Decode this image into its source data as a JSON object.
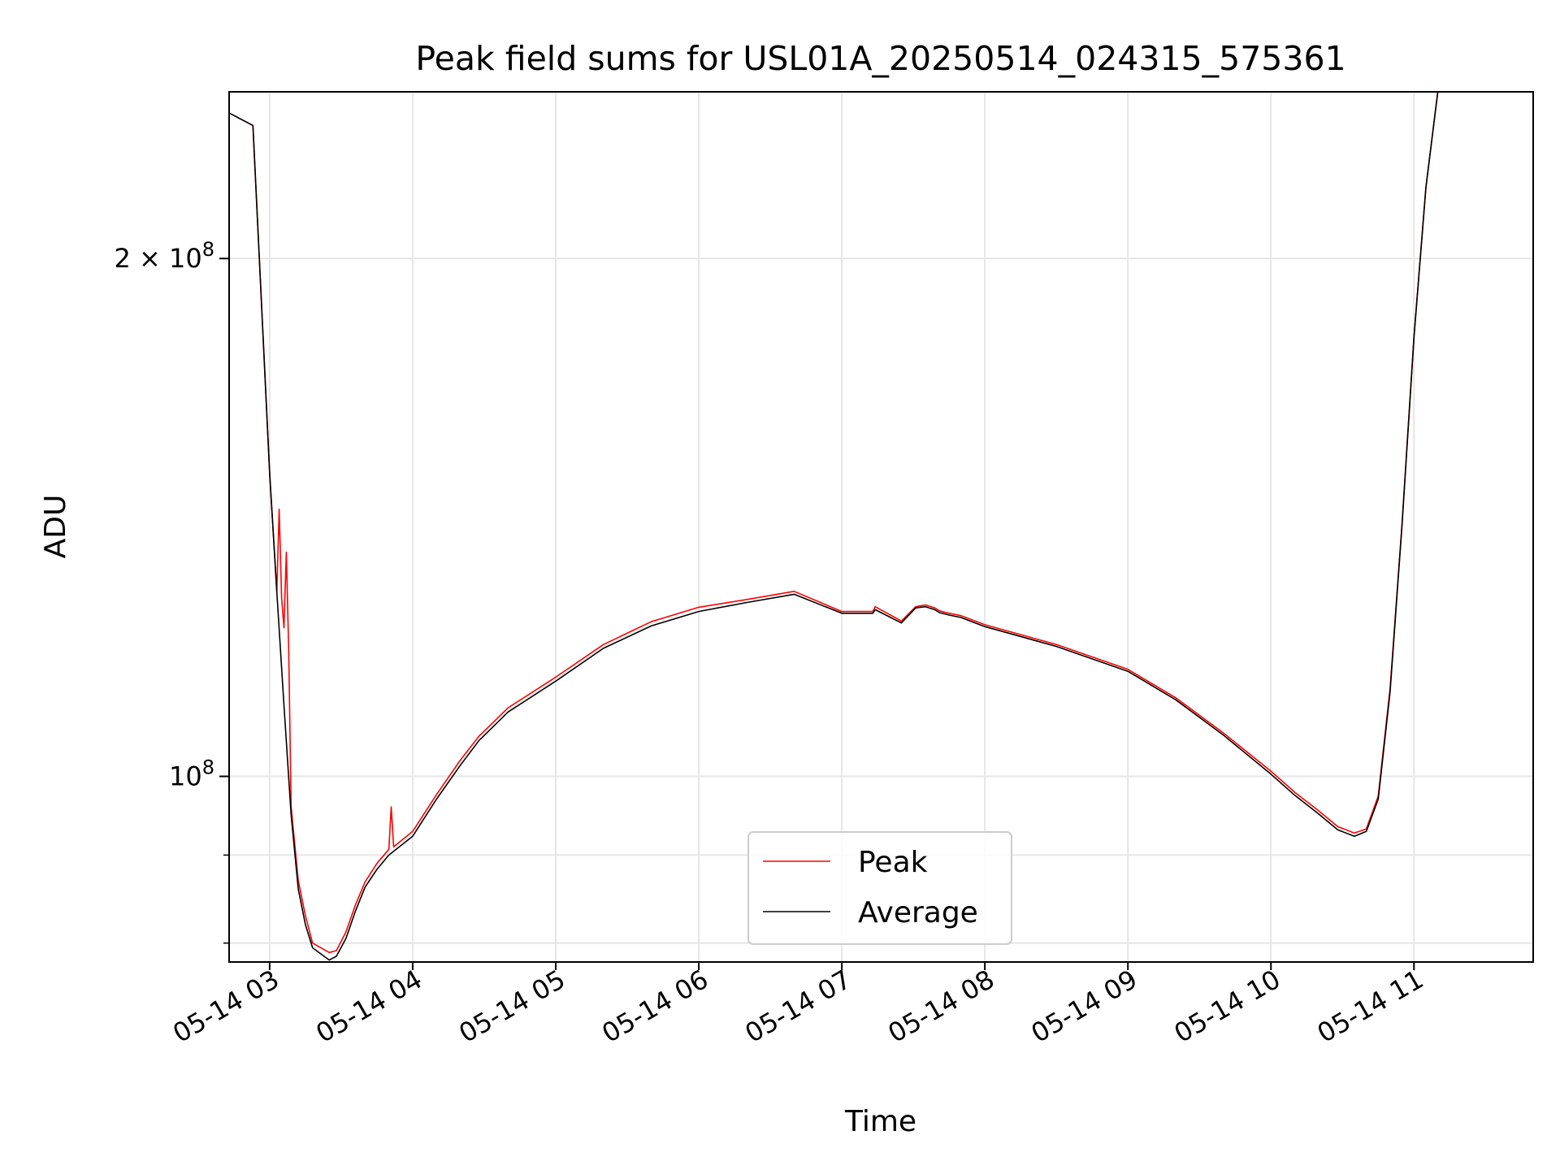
{
  "chart_data": {
    "type": "line",
    "title": "Peak field sums for USL01A_20250514_024315_575361",
    "xlabel": "Time",
    "ylabel": "ADU",
    "x_ticks": [
      "05-14 03",
      "05-14 04",
      "05-14 05",
      "05-14 06",
      "05-14 07",
      "05-14 08",
      "05-14 09",
      "05-14 10",
      "05-14 11"
    ],
    "y_ticks": [
      {
        "value": 100000000,
        "mantissa": "",
        "base": "10",
        "exp": "8"
      },
      {
        "value": 200000000,
        "mantissa": "2 × ",
        "base": "10",
        "exp": "8"
      }
    ],
    "yscale": "log",
    "ylim": [
      78000000,
      250000000
    ],
    "xlim": [
      "2025-05-14 02:43",
      "2025-05-14 11:50"
    ],
    "grid": true,
    "legend": {
      "position": "lower center"
    },
    "colors": {
      "Peak": "#ff0000",
      "Average": "#000000",
      "grid": "#e6e6e6"
    },
    "series": [
      {
        "name": "Average",
        "x": [
          "2025-05-14 02:43",
          "2025-05-14 02:53",
          "2025-05-14 03:00",
          "2025-05-14 03:03",
          "2025-05-14 03:06",
          "2025-05-14 03:09",
          "2025-05-14 03:12",
          "2025-05-14 03:15",
          "2025-05-14 03:18",
          "2025-05-14 03:25",
          "2025-05-14 03:28",
          "2025-05-14 03:32",
          "2025-05-14 03:36",
          "2025-05-14 03:40",
          "2025-05-14 03:45",
          "2025-05-14 03:50",
          "2025-05-14 04:00",
          "2025-05-14 04:10",
          "2025-05-14 04:20",
          "2025-05-14 04:28",
          "2025-05-14 04:29",
          "2025-05-14 04:40",
          "2025-05-14 05:00",
          "2025-05-14 05:20",
          "2025-05-14 05:40",
          "2025-05-14 06:00",
          "2025-05-14 06:20",
          "2025-05-14 06:40",
          "2025-05-14 07:00",
          "2025-05-14 07:13",
          "2025-05-14 07:14",
          "2025-05-14 07:25",
          "2025-05-14 07:31",
          "2025-05-14 07:35",
          "2025-05-14 07:39",
          "2025-05-14 07:41",
          "2025-05-14 07:45",
          "2025-05-14 07:50",
          "2025-05-14 08:00",
          "2025-05-14 08:30",
          "2025-05-14 09:00",
          "2025-05-14 09:20",
          "2025-05-14 09:40",
          "2025-05-14 10:00",
          "2025-05-14 10:10",
          "2025-05-14 10:20",
          "2025-05-14 10:28",
          "2025-05-14 10:35",
          "2025-05-14 10:40",
          "2025-05-14 10:45",
          "2025-05-14 10:50",
          "2025-05-14 10:55",
          "2025-05-14 11:00",
          "2025-05-14 11:05",
          "2025-05-14 11:10",
          "2025-05-14 11:15",
          "2025-05-14 11:20"
        ],
        "values": [
          243000000,
          239000000,
          150000000,
          128000000,
          110000000,
          95000000,
          86000000,
          82000000,
          79500000,
          78200000,
          78600000,
          80500000,
          83500000,
          86200000,
          88300000,
          90000000,
          92300000,
          97000000,
          101500000,
          105000000,
          105300000,
          109000000,
          113600000,
          118700000,
          122300000,
          124700000,
          126200000,
          127600000,
          124400000,
          124400000,
          125000000,
          122800000,
          125300000,
          125500000,
          125000000,
          124500000,
          124100000,
          123700000,
          122200000,
          119000000,
          115100000,
          110800000,
          105700000,
          100300000,
          97500000,
          95100000,
          93100000,
          92300000,
          92900000,
          97000000,
          112000000,
          140000000,
          180000000,
          220000000,
          250000000,
          250000000,
          250000000
        ]
      },
      {
        "name": "Peak",
        "x": [
          "2025-05-14 02:43",
          "2025-05-14 02:53",
          "2025-05-14 03:00",
          "2025-05-14 03:03",
          "2025-05-14 03:04",
          "2025-05-14 03:05",
          "2025-05-14 03:06",
          "2025-05-14 03:07",
          "2025-05-14 03:08",
          "2025-05-14 03:09",
          "2025-05-14 03:12",
          "2025-05-14 03:15",
          "2025-05-14 03:18",
          "2025-05-14 03:25",
          "2025-05-14 03:28",
          "2025-05-14 03:32",
          "2025-05-14 03:36",
          "2025-05-14 03:40",
          "2025-05-14 03:45",
          "2025-05-14 03:50",
          "2025-05-14 03:51",
          "2025-05-14 03:52",
          "2025-05-14 04:00",
          "2025-05-14 04:10",
          "2025-05-14 04:20",
          "2025-05-14 04:28",
          "2025-05-14 04:29",
          "2025-05-14 04:40",
          "2025-05-14 05:00",
          "2025-05-14 05:20",
          "2025-05-14 05:40",
          "2025-05-14 06:00",
          "2025-05-14 06:20",
          "2025-05-14 06:40",
          "2025-05-14 07:00",
          "2025-05-14 07:13",
          "2025-05-14 07:14",
          "2025-05-14 07:25",
          "2025-05-14 07:31",
          "2025-05-14 07:35",
          "2025-05-14 07:39",
          "2025-05-14 07:41",
          "2025-05-14 07:45",
          "2025-05-14 07:50",
          "2025-05-14 08:00",
          "2025-05-14 08:30",
          "2025-05-14 09:00",
          "2025-05-14 09:20",
          "2025-05-14 09:40",
          "2025-05-14 10:00",
          "2025-05-14 10:10",
          "2025-05-14 10:20",
          "2025-05-14 10:28",
          "2025-05-14 10:35",
          "2025-05-14 10:40",
          "2025-05-14 10:45",
          "2025-05-14 10:50",
          "2025-05-14 10:55",
          "2025-05-14 11:00",
          "2025-05-14 11:05",
          "2025-05-14 11:10",
          "2025-05-14 11:15",
          "2025-05-14 11:20"
        ],
        "values": [
          243000000,
          239000000,
          150000000,
          128000000,
          143000000,
          127000000,
          122000000,
          135000000,
          118000000,
          96000000,
          87000000,
          83000000,
          80000000,
          79000000,
          79200000,
          81200000,
          84200000,
          86800000,
          89000000,
          90700000,
          96000000,
          91000000,
          92900000,
          97600000,
          102200000,
          105600000,
          105900000,
          109600000,
          114200000,
          119300000,
          123000000,
          125400000,
          126700000,
          128100000,
          124700000,
          124700000,
          125500000,
          123100000,
          125500000,
          125800000,
          125300000,
          124800000,
          124400000,
          124000000,
          122500000,
          119300000,
          115400000,
          111100000,
          106000000,
          100700000,
          97900000,
          95500000,
          93500000,
          92700000,
          93200000,
          97400000,
          112500000,
          140300000,
          180200000,
          220100000,
          250000000,
          250000000,
          250000000
        ]
      }
    ]
  }
}
